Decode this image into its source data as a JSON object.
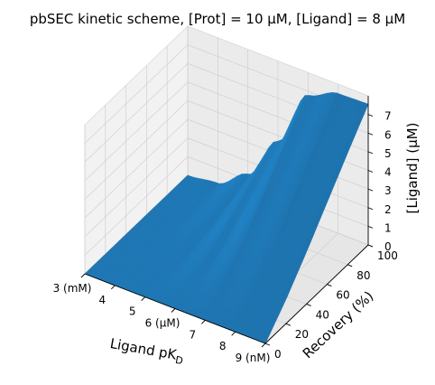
{
  "chart_data": {
    "type": "surface",
    "title": "pbSEC kinetic scheme, [Prot] = 10 μM, [Ligand] = 8 μM",
    "xlabel": "Ligand pK",
    "xlabel_sub": "D",
    "ylabel": "Recovery (%)",
    "zlabel": "[Ligand] (μM)",
    "xlim": [
      3,
      9
    ],
    "ylim": [
      0,
      100
    ],
    "zlim": [
      0,
      8
    ],
    "x_ticks": [
      {
        "value": 3,
        "label": "3 (mM)"
      },
      {
        "value": 4,
        "label": "4"
      },
      {
        "value": 5,
        "label": "5"
      },
      {
        "value": 6,
        "label": "6 (μM)"
      },
      {
        "value": 7,
        "label": "7"
      },
      {
        "value": 8,
        "label": "8"
      },
      {
        "value": 9,
        "label": "9 (nM)"
      }
    ],
    "y_ticks": [
      {
        "value": 0,
        "label": "0"
      },
      {
        "value": 20,
        "label": "20"
      },
      {
        "value": 40,
        "label": "40"
      },
      {
        "value": 60,
        "label": "60"
      },
      {
        "value": 80,
        "label": "80"
      },
      {
        "value": 100,
        "label": "100"
      }
    ],
    "z_ticks": [
      {
        "value": 0,
        "label": "0"
      },
      {
        "value": 1,
        "label": "1"
      },
      {
        "value": 2,
        "label": "2"
      },
      {
        "value": 3,
        "label": "3"
      },
      {
        "value": 4,
        "label": "4"
      },
      {
        "value": 5,
        "label": "5"
      },
      {
        "value": 6,
        "label": "6"
      },
      {
        "value": 7,
        "label": "7"
      }
    ],
    "surface_color": "#1f77b4",
    "surface_x": [
      3,
      4,
      5,
      6,
      7,
      8,
      9
    ],
    "surface_y": [
      0,
      20,
      40,
      60,
      80,
      100
    ],
    "surface_z": [
      [
        0.0,
        0.0,
        0.0,
        0.0,
        0.0,
        0.0,
        0.0
      ],
      [
        0.0,
        0.0,
        0.05,
        0.4,
        0.95,
        1.25,
        1.3
      ],
      [
        0.0,
        0.02,
        0.2,
        1.0,
        2.1,
        2.7,
        2.8
      ],
      [
        0.0,
        0.05,
        0.45,
        1.8,
        3.6,
        4.3,
        4.4
      ],
      [
        0.0,
        0.1,
        0.8,
        2.8,
        5.2,
        5.9,
        6.0
      ],
      [
        0.0,
        0.2,
        1.3,
        3.7,
        6.8,
        7.5,
        7.55
      ]
    ],
    "grid": true
  }
}
